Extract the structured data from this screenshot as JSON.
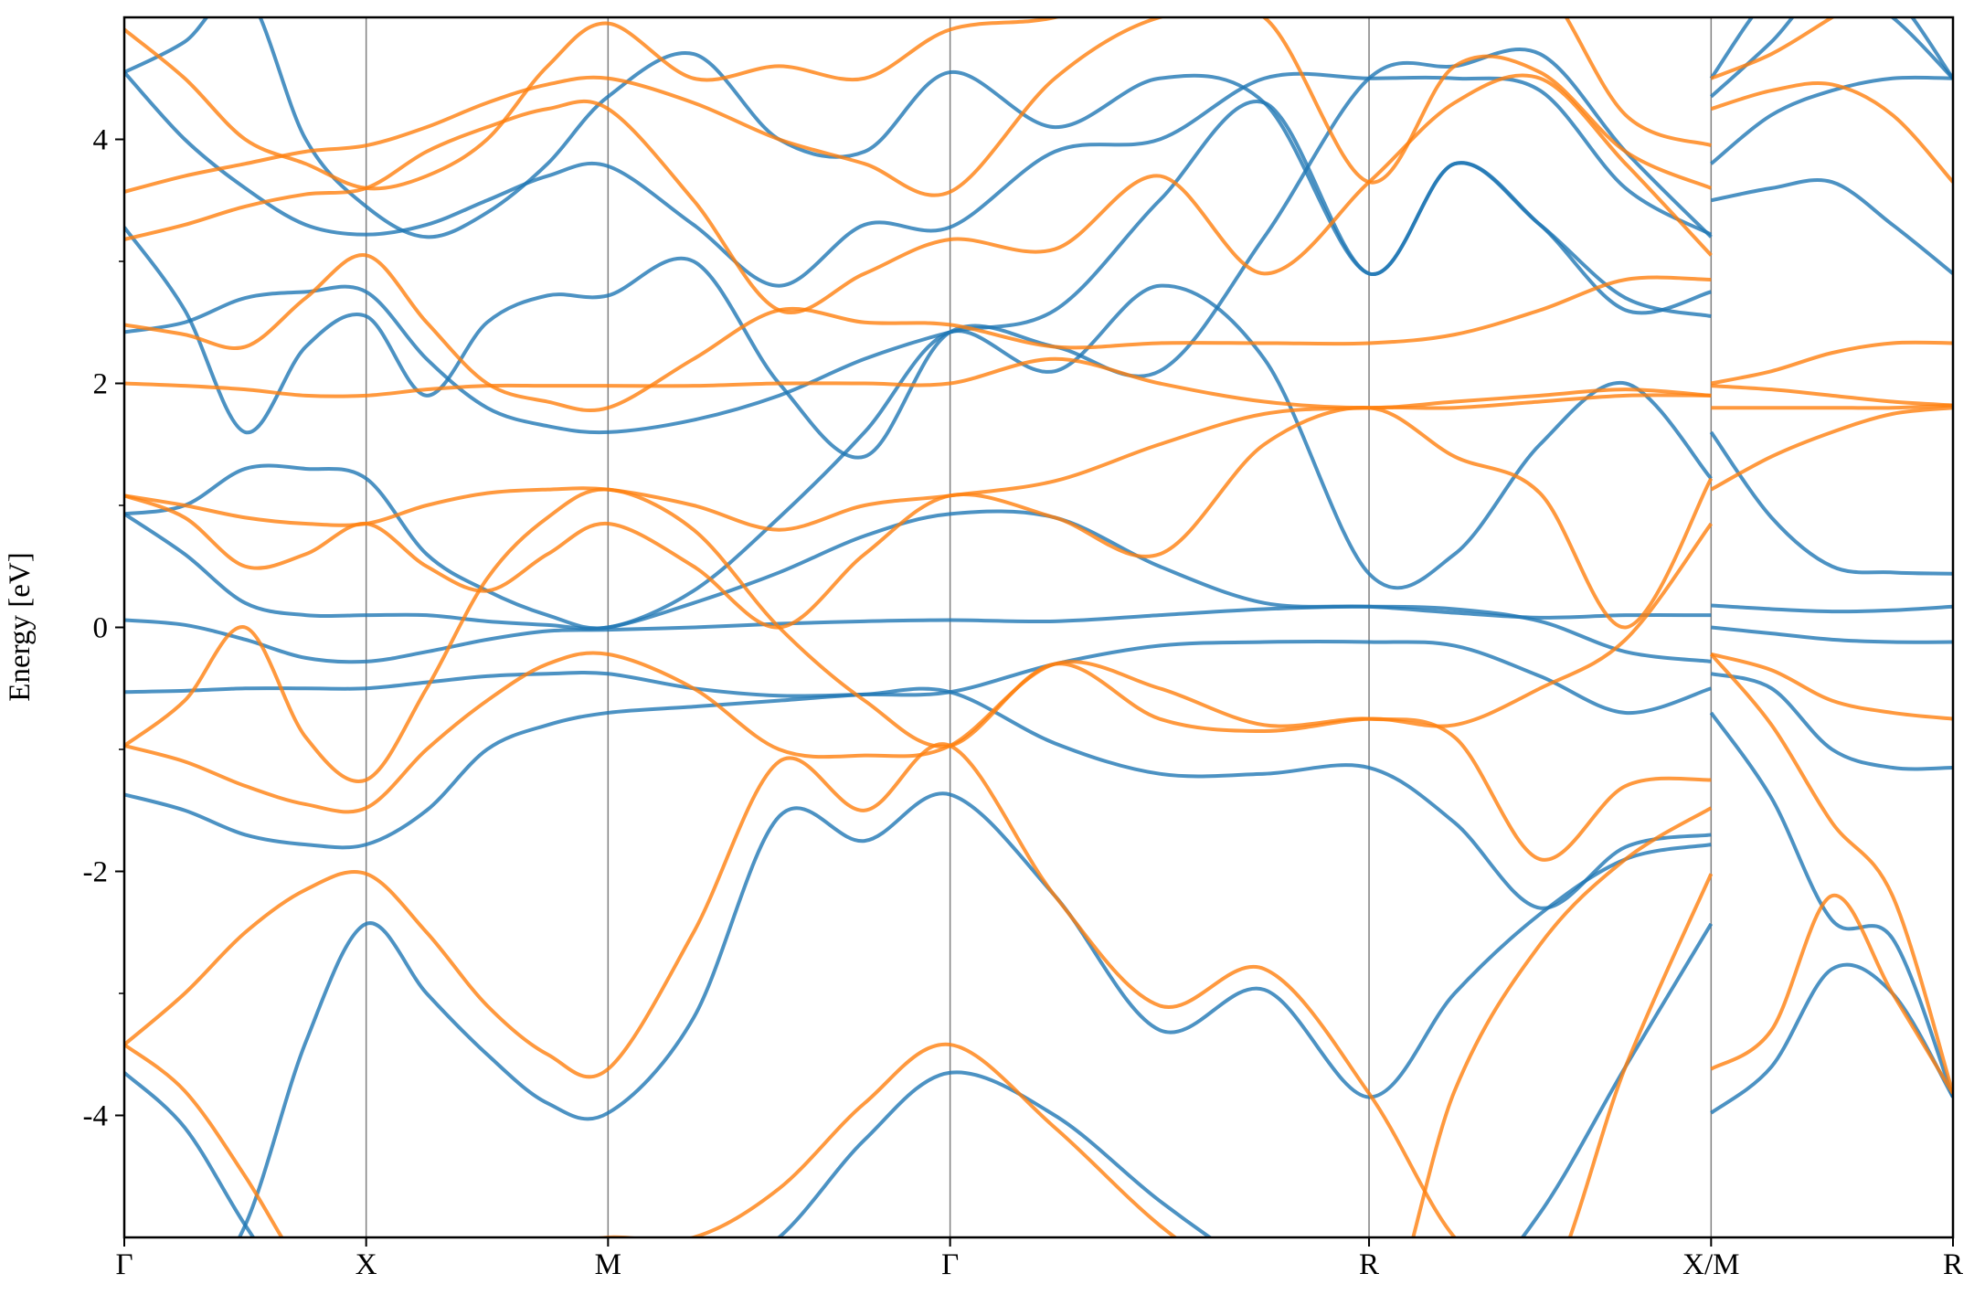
{
  "chart_data": {
    "type": "line",
    "ylabel": "Energy [eV]",
    "x": [
      0,
      0.125,
      0.25,
      0.375,
      0.5,
      0.625,
      0.75,
      0.875,
      1.0,
      1.1768,
      1.3536,
      1.5303,
      1.7071,
      1.9236,
      2.1401,
      2.3566,
      2.5731,
      2.7499,
      2.9266,
      3.1034,
      3.2802,
      3.2802,
      3.2802,
      3.4052,
      3.5302,
      3.6552,
      3.7802
    ],
    "xlim": [
      0,
      3.7802
    ],
    "xticks": [
      {
        "value": 0,
        "label": "Γ"
      },
      {
        "value": 0.5,
        "label": "X"
      },
      {
        "value": 1.0,
        "label": "M"
      },
      {
        "value": 1.7071,
        "label": "Γ"
      },
      {
        "value": 2.5731,
        "label": "R"
      },
      {
        "value": 3.2802,
        "label": "X/M"
      },
      {
        "value": 3.7802,
        "label": "R"
      }
    ],
    "ylim": [
      -5,
      5
    ],
    "yticks": [
      -4,
      -2,
      0,
      2,
      4
    ],
    "yminor_ticks": [
      -3,
      -1,
      1,
      3
    ],
    "grid": true,
    "line_opacity": 0.8,
    "series": [
      {
        "color": "#1f77b4",
        "values": [
          -3.65,
          -4.1,
          -4.9,
          -5.6,
          -6.0,
          -5.9,
          -5.6,
          -5.3,
          -5.2,
          -5.4,
          -5.0,
          -4.2,
          -3.65,
          -4.0,
          -4.7,
          -5.3,
          -5.8,
          -5.6,
          -4.8,
          -3.6,
          -2.43,
          null,
          -3.98,
          -3.6,
          -2.8,
          -3.0,
          -3.85
        ]
      },
      {
        "color": "#1f77b4",
        "values": [
          -5.8,
          -5.6,
          -4.9,
          -3.4,
          -2.43,
          -3.0,
          -3.5,
          -3.9,
          -3.98,
          -3.2,
          -1.55,
          -1.75,
          -1.37,
          -2.2,
          -3.3,
          -2.97,
          -3.85,
          -3.0,
          -2.35,
          -1.9,
          -1.78,
          null,
          -0.7,
          -1.4,
          -2.4,
          -2.55,
          -3.85
        ]
      },
      {
        "color": "#1f77b4",
        "values": [
          -1.37,
          -1.5,
          -1.7,
          -1.78,
          -1.78,
          -1.5,
          -1.0,
          -0.8,
          -0.7,
          -0.65,
          -0.6,
          -0.55,
          -0.53,
          -0.95,
          -1.2,
          -1.2,
          -1.15,
          -1.6,
          -2.3,
          -1.8,
          -1.7,
          null,
          -0.38,
          -0.5,
          -1.0,
          -1.15,
          -1.15
        ]
      },
      {
        "color": "#1f77b4",
        "values": [
          -0.53,
          -0.52,
          -0.5,
          -0.5,
          -0.5,
          -0.45,
          -0.4,
          -0.38,
          -0.38,
          -0.5,
          -0.56,
          -0.55,
          -0.53,
          -0.3,
          -0.15,
          -0.12,
          -0.12,
          -0.15,
          -0.4,
          -0.7,
          -0.5,
          null,
          0.0,
          -0.05,
          -0.1,
          -0.12,
          -0.12
        ]
      },
      {
        "color": "#1f77b4",
        "values": [
          0.06,
          0.02,
          -0.1,
          -0.25,
          -0.28,
          -0.2,
          -0.1,
          -0.03,
          -0.02,
          0.0,
          0.03,
          0.05,
          0.06,
          0.05,
          0.1,
          0.15,
          0.17,
          0.15,
          0.05,
          -0.2,
          -0.28,
          null,
          0.18,
          0.15,
          0.13,
          0.14,
          0.17
        ]
      },
      {
        "color": "#1f77b4",
        "values": [
          0.93,
          0.6,
          0.2,
          0.1,
          0.1,
          0.1,
          0.05,
          0.02,
          0.0,
          0.2,
          0.45,
          0.75,
          0.93,
          0.9,
          0.5,
          0.2,
          0.17,
          0.12,
          0.08,
          0.1,
          0.1,
          null,
          1.6,
          0.9,
          0.5,
          0.45,
          0.44
        ]
      },
      {
        "color": "#1f77b4",
        "values": [
          0.93,
          1.0,
          1.3,
          1.3,
          1.22,
          0.6,
          0.3,
          0.1,
          0.0,
          0.3,
          0.9,
          1.6,
          2.42,
          2.1,
          2.8,
          2.2,
          0.44,
          0.6,
          1.5,
          2.0,
          1.22,
          null,
          3.5,
          3.6,
          3.65,
          3.3,
          2.9
        ]
      },
      {
        "color": "#1f77b4",
        "values": [
          2.42,
          2.5,
          2.7,
          2.75,
          2.75,
          2.2,
          1.8,
          1.65,
          1.6,
          1.7,
          1.9,
          2.2,
          2.42,
          2.6,
          3.5,
          4.3,
          2.9,
          3.8,
          3.3,
          2.7,
          2.55,
          null,
          3.8,
          4.2,
          4.4,
          4.5,
          4.5
        ]
      },
      {
        "color": "#1f77b4",
        "values": [
          3.28,
          2.6,
          1.6,
          2.3,
          2.55,
          1.9,
          2.5,
          2.72,
          2.72,
          3.0,
          2.0,
          1.4,
          2.42,
          2.3,
          2.1,
          3.2,
          4.5,
          4.6,
          4.7,
          3.9,
          3.2,
          null,
          4.35,
          4.8,
          5.3,
          5.0,
          4.5
        ]
      },
      {
        "color": "#1f77b4",
        "values": [
          4.55,
          4.0,
          3.6,
          3.3,
          3.22,
          3.3,
          3.5,
          3.7,
          3.78,
          3.3,
          2.8,
          3.3,
          3.28,
          3.9,
          4.0,
          4.5,
          4.5,
          4.5,
          4.4,
          3.6,
          3.22,
          null,
          4.5,
          5.2,
          5.5,
          5.2,
          4.5
        ]
      },
      {
        "color": "#1f77b4",
        "values": [
          4.55,
          4.8,
          5.2,
          4.0,
          3.45,
          3.2,
          3.4,
          3.8,
          4.35,
          4.7,
          4.0,
          3.9,
          4.55,
          4.1,
          4.5,
          4.3,
          2.9,
          3.8,
          3.3,
          2.6,
          2.75,
          null,
          5.5,
          5.6,
          5.6,
          5.6,
          5.5
        ]
      },
      {
        "color": "#ff7f0e",
        "values": [
          -3.42,
          -3.0,
          -2.5,
          -2.15,
          -2.02,
          -2.5,
          -3.1,
          -3.5,
          -3.62,
          -2.5,
          -1.1,
          -1.5,
          -0.97,
          -2.2,
          -3.1,
          -2.8,
          -3.82,
          -5.0,
          -5.5,
          -3.6,
          -2.02,
          null,
          -3.62,
          -3.3,
          -2.2,
          -3.0,
          -3.82
        ]
      },
      {
        "color": "#ff7f0e",
        "values": [
          -3.42,
          -3.8,
          -4.5,
          -5.3,
          -5.8,
          -5.6,
          -5.3,
          -5.1,
          -5.0,
          -5.0,
          -4.6,
          -3.9,
          -3.42,
          -4.1,
          -4.9,
          -5.5,
          -6.0,
          -3.8,
          -2.6,
          -1.9,
          -1.48,
          null,
          -0.22,
          -0.8,
          -1.6,
          -2.2,
          -3.82
        ]
      },
      {
        "color": "#ff7f0e",
        "values": [
          -0.97,
          -1.1,
          -1.3,
          -1.45,
          -1.48,
          -1.0,
          -0.6,
          -0.3,
          -0.22,
          -0.5,
          -1.0,
          -1.05,
          -0.97,
          -0.3,
          -0.5,
          -0.8,
          -0.75,
          -0.9,
          -1.9,
          -1.3,
          -1.25,
          null,
          -0.22,
          -0.35,
          -0.6,
          -0.7,
          -0.75
        ]
      },
      {
        "color": "#ff7f0e",
        "values": [
          -0.97,
          -0.6,
          0.0,
          -0.9,
          -1.25,
          -0.5,
          0.4,
          0.9,
          1.13,
          0.8,
          0.0,
          -0.6,
          -0.97,
          -0.3,
          -0.75,
          -0.85,
          -0.75,
          -0.8,
          -0.5,
          -0.1,
          0.85,
          null,
          1.13,
          1.4,
          1.6,
          1.75,
          1.8
        ]
      },
      {
        "color": "#ff7f0e",
        "values": [
          1.08,
          0.9,
          0.5,
          0.6,
          0.85,
          0.5,
          0.3,
          0.6,
          0.85,
          0.5,
          0.0,
          0.6,
          1.08,
          0.9,
          0.6,
          1.5,
          1.8,
          1.4,
          1.1,
          0.0,
          1.22,
          null,
          1.8,
          1.8,
          1.8,
          1.8,
          1.82
        ]
      },
      {
        "color": "#ff7f0e",
        "values": [
          1.08,
          1.0,
          0.9,
          0.85,
          0.85,
          1.0,
          1.1,
          1.13,
          1.13,
          1.0,
          0.8,
          1.0,
          1.08,
          1.2,
          1.5,
          1.75,
          1.8,
          1.8,
          1.85,
          1.9,
          1.9,
          null,
          1.98,
          1.95,
          1.9,
          1.85,
          1.82
        ]
      },
      {
        "color": "#ff7f0e",
        "values": [
          2.0,
          1.98,
          1.95,
          1.9,
          1.9,
          1.95,
          1.98,
          1.98,
          1.98,
          1.98,
          2.0,
          2.0,
          2.0,
          2.2,
          2.0,
          1.85,
          1.8,
          1.85,
          1.9,
          1.95,
          1.9,
          null,
          2.0,
          2.1,
          2.25,
          2.33,
          2.33
        ]
      },
      {
        "color": "#ff7f0e",
        "values": [
          2.48,
          2.4,
          2.3,
          2.7,
          3.05,
          2.5,
          2.0,
          1.85,
          1.8,
          2.2,
          2.6,
          2.5,
          2.48,
          2.3,
          2.33,
          2.33,
          2.33,
          2.4,
          2.6,
          2.85,
          2.85,
          null,
          4.25,
          4.4,
          4.45,
          4.2,
          3.65
        ]
      },
      {
        "color": "#ff7f0e",
        "values": [
          3.18,
          3.3,
          3.45,
          3.55,
          3.6,
          3.9,
          4.1,
          4.25,
          4.25,
          3.5,
          2.6,
          2.9,
          3.18,
          3.1,
          3.7,
          2.9,
          3.65,
          4.3,
          4.5,
          3.8,
          3.05,
          null,
          4.5,
          4.7,
          5.0,
          5.3,
          5.5
        ]
      },
      {
        "color": "#ff7f0e",
        "values": [
          3.57,
          3.7,
          3.8,
          3.9,
          3.95,
          4.1,
          4.3,
          4.45,
          4.5,
          4.3,
          4.0,
          3.8,
          3.57,
          4.5,
          5.0,
          5.0,
          3.65,
          4.6,
          4.55,
          3.9,
          3.6,
          null,
          5.0,
          5.5,
          5.6,
          5.6,
          5.5
        ]
      },
      {
        "color": "#ff7f0e",
        "values": [
          4.9,
          4.5,
          4.0,
          3.8,
          3.6,
          3.7,
          4.0,
          4.6,
          4.95,
          4.5,
          4.6,
          4.5,
          4.9,
          5.0,
          5.3,
          5.5,
          5.5,
          5.5,
          5.3,
          4.2,
          3.95,
          null,
          5.5,
          5.6,
          5.6,
          5.6,
          5.6
        ]
      }
    ]
  }
}
